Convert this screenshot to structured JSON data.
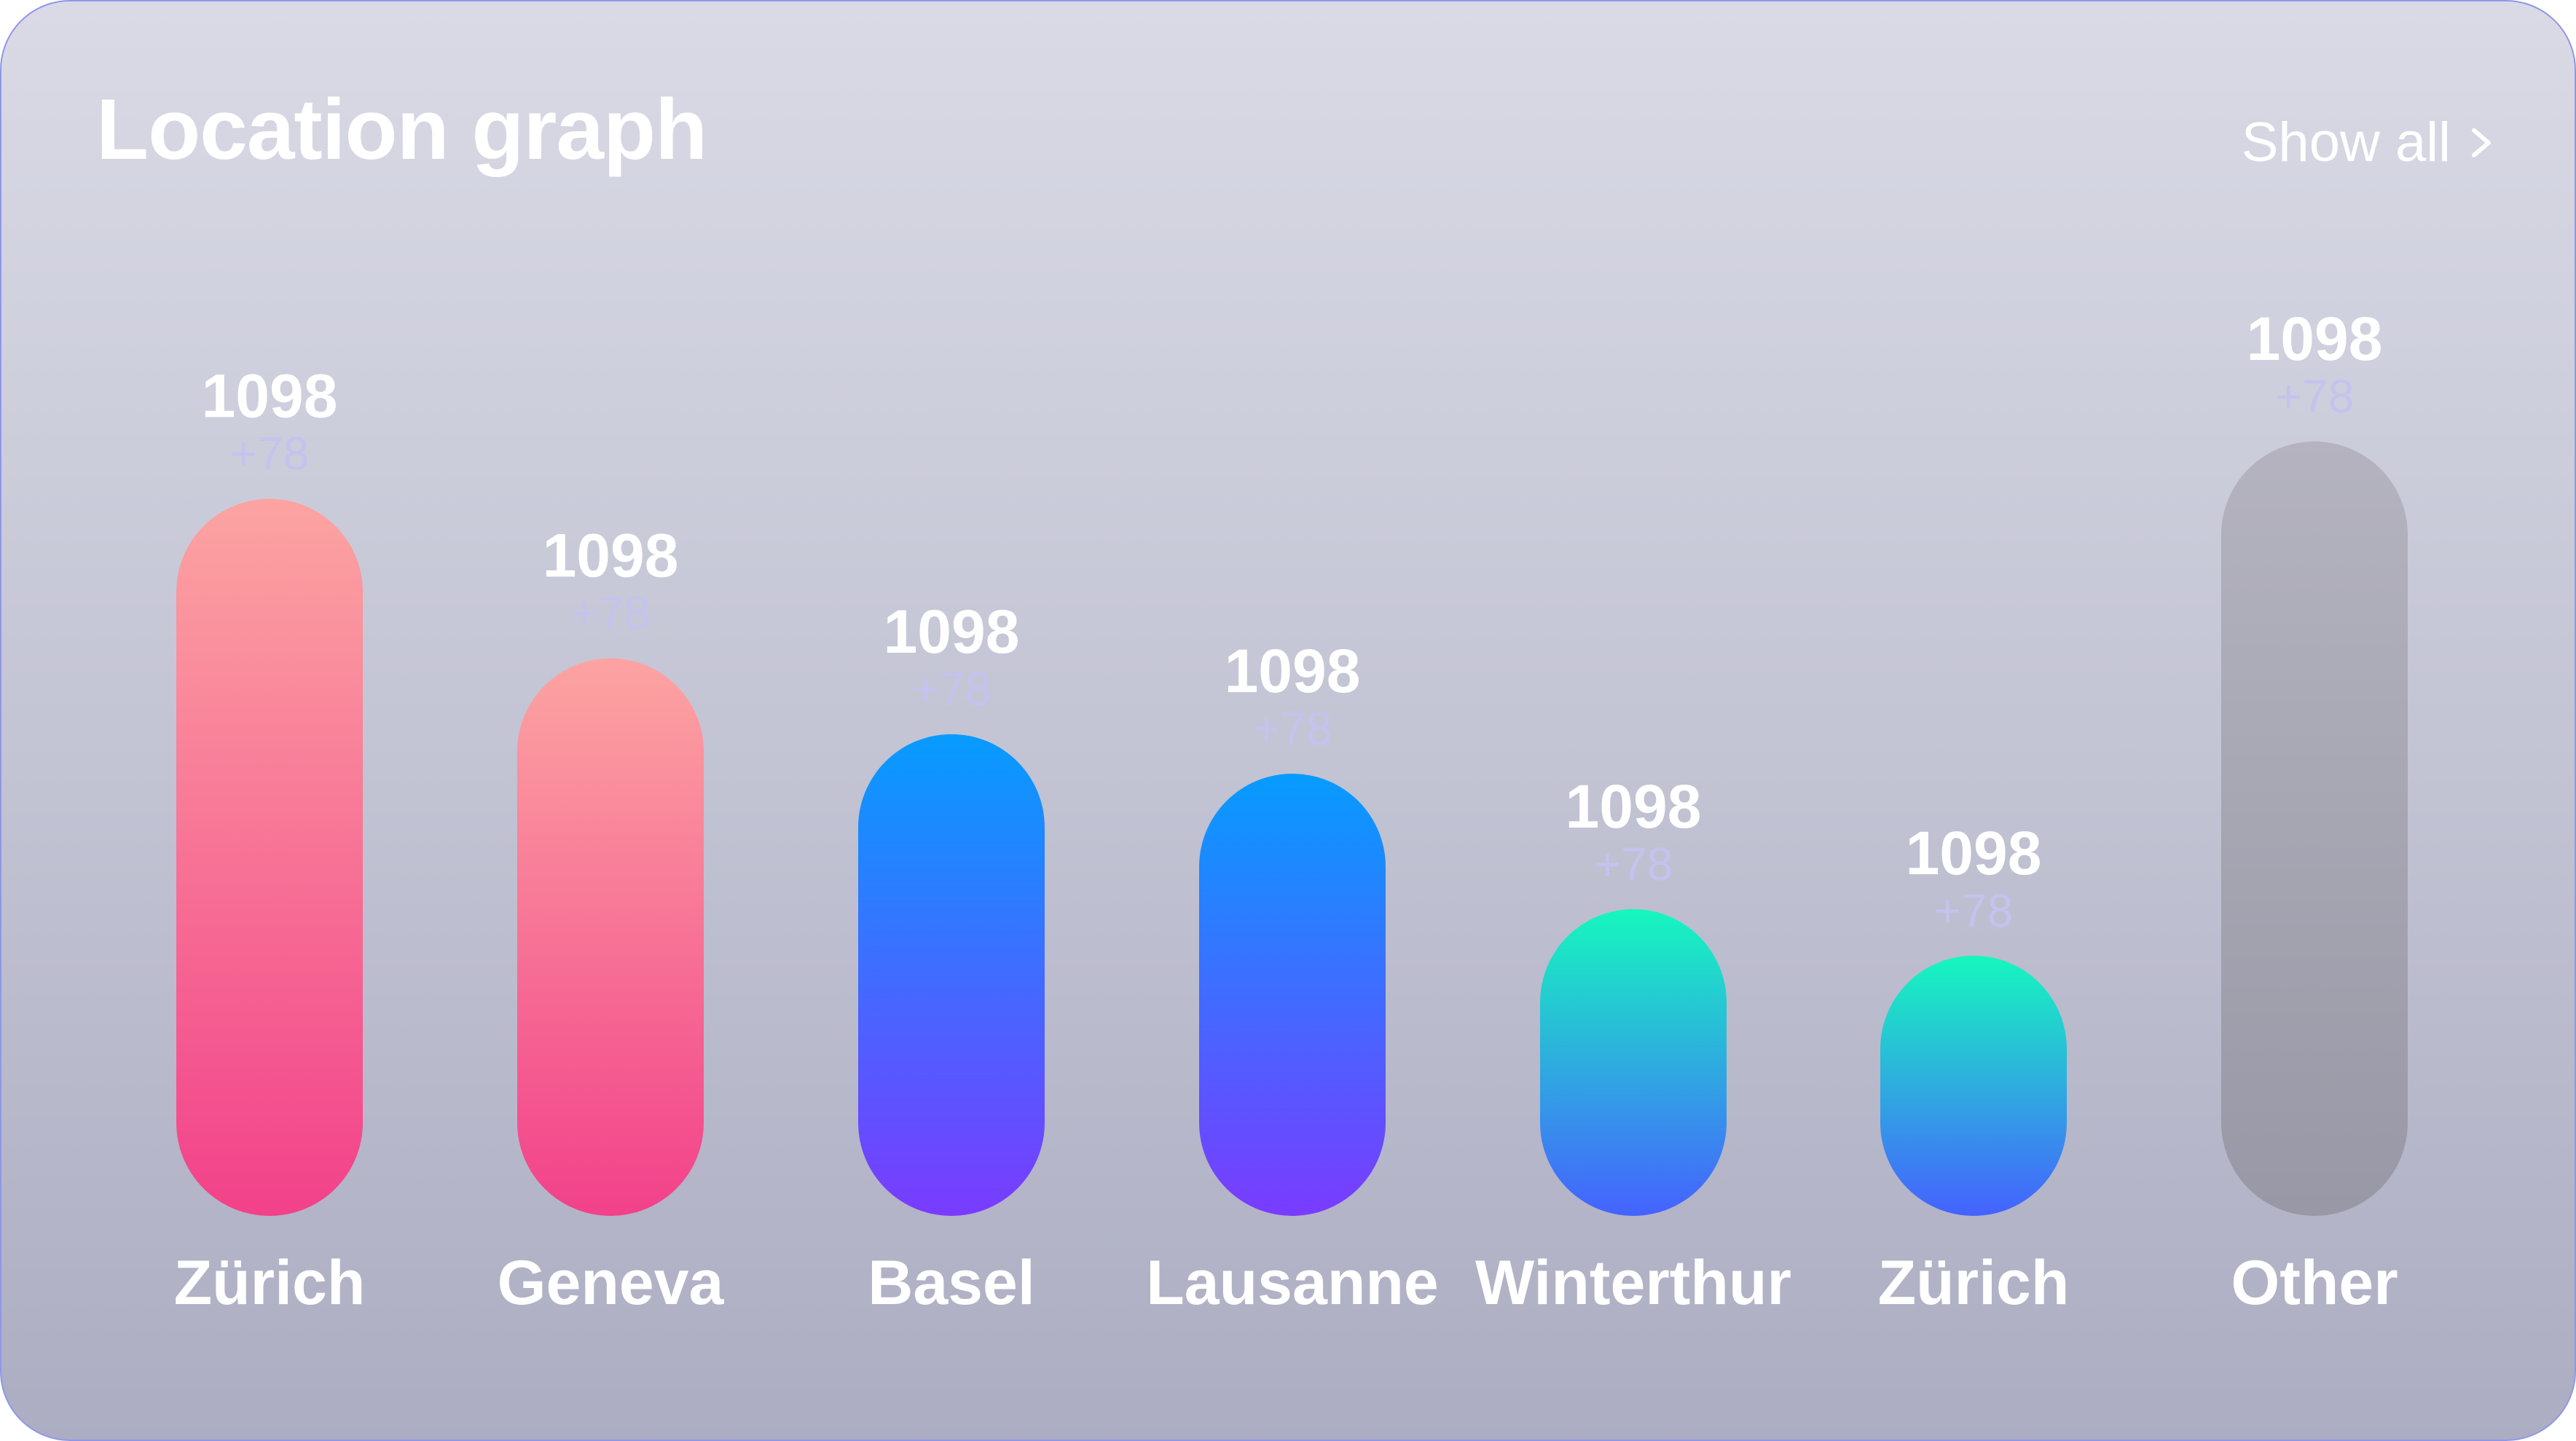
{
  "card": {
    "title": "Location graph",
    "show_all_label": "Show all",
    "show_all_icon": "chevron-right-icon"
  },
  "chart_data": {
    "type": "bar",
    "categories": [
      "Zürich",
      "Geneva",
      "Basel",
      "Lausanne",
      "Winterthur",
      "Zürich",
      "Other"
    ],
    "values": [
      1098,
      1098,
      1098,
      1098,
      1098,
      1098,
      1098
    ],
    "deltas": [
      "+78",
      "+78",
      "+78",
      "+78",
      "+78",
      "+78",
      "+78"
    ],
    "relative_heights": [
      0.926,
      0.72,
      0.622,
      0.571,
      0.396,
      0.336,
      1.0
    ],
    "bar_gradients": [
      [
        "#fca4a2",
        "#f2418a"
      ],
      [
        "#fca4a2",
        "#f2418a"
      ],
      [
        "#069cff",
        "#7a3bff"
      ],
      [
        "#069cff",
        "#7a3bff"
      ],
      [
        "#16f7be",
        "#4562ff"
      ],
      [
        "#16f7be",
        "#4562ff"
      ],
      [
        "#b4b3bf",
        "#9898a6"
      ]
    ],
    "grid": false,
    "legend": "none"
  }
}
